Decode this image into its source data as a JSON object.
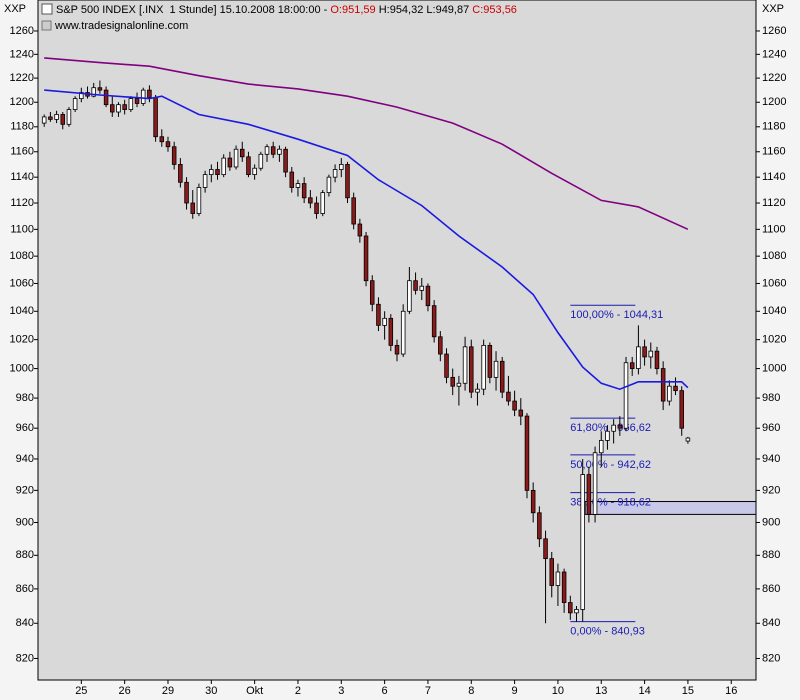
{
  "chart_data": {
    "type": "candlestick",
    "axis_label": "XXP",
    "title_parts": [
      "S&P 500 INDEX [.INX  1 Stunde] 15.10.2008 18:00:00 - ",
      "O:951,59",
      " H:954,32 L:949,87 ",
      "C:953,56"
    ],
    "source": "www.tradesignalonline.com",
    "log_scale": true,
    "ylim": [
      808,
      1287
    ],
    "yticks": [
      820,
      840,
      860,
      880,
      900,
      920,
      940,
      960,
      980,
      1000,
      1020,
      1040,
      1060,
      1080,
      1100,
      1120,
      1140,
      1160,
      1180,
      1200,
      1220,
      1240,
      1260
    ],
    "xlim": [
      0,
      116
    ],
    "xticks": [
      {
        "value": 7,
        "label": "25"
      },
      {
        "value": 14,
        "label": "26"
      },
      {
        "value": 21,
        "label": "29"
      },
      {
        "value": 28,
        "label": "30"
      },
      {
        "value": 35,
        "label": "Okt"
      },
      {
        "value": 42,
        "label": "2"
      },
      {
        "value": 49,
        "label": "3"
      },
      {
        "value": 56,
        "label": "6"
      },
      {
        "value": 63,
        "label": "7"
      },
      {
        "value": 70,
        "label": "8"
      },
      {
        "value": 77,
        "label": "9"
      },
      {
        "value": 84,
        "label": "10"
      },
      {
        "value": 91,
        "label": "13"
      },
      {
        "value": 98,
        "label": "14"
      },
      {
        "value": 105,
        "label": "15"
      },
      {
        "value": 112,
        "label": "16"
      }
    ],
    "up_color": "#ffffff",
    "down_color": "#8b1a1a",
    "x": [
      1,
      2,
      3,
      4,
      5,
      6,
      7,
      8,
      9,
      10,
      11,
      12,
      13,
      14,
      15,
      16,
      17,
      18,
      19,
      20,
      21,
      22,
      23,
      24,
      25,
      26,
      27,
      28,
      29,
      30,
      31,
      32,
      33,
      34,
      35,
      36,
      37,
      38,
      39,
      40,
      41,
      42,
      43,
      44,
      45,
      46,
      47,
      48,
      49,
      50,
      51,
      52,
      53,
      54,
      55,
      56,
      57,
      58,
      59,
      60,
      61,
      62,
      63,
      64,
      65,
      66,
      67,
      68,
      69,
      70,
      71,
      72,
      73,
      74,
      75,
      76,
      77,
      78,
      79,
      80,
      81,
      82,
      83,
      84,
      85,
      86,
      87,
      88,
      89,
      90,
      91,
      92,
      93,
      94,
      95,
      96,
      97,
      98,
      99,
      100,
      101,
      102,
      103,
      104,
      105
    ],
    "open": [
      1183,
      1188,
      1186,
      1190,
      1182,
      1194,
      1203,
      1208,
      1205,
      1212,
      1210,
      1198,
      1192,
      1198,
      1194,
      1203,
      1199,
      1210,
      1204,
      1172,
      1168,
      1164,
      1150,
      1136,
      1120,
      1112,
      1132,
      1142,
      1146,
      1142,
      1155,
      1148,
      1162,
      1156,
      1142,
      1147,
      1158,
      1164,
      1158,
      1162,
      1144,
      1132,
      1135,
      1124,
      1120,
      1112,
      1128,
      1140,
      1146,
      1150,
      1124,
      1104,
      1095,
      1062,
      1045,
      1030,
      1035,
      1016,
      1010,
      1040,
      1062,
      1055,
      1058,
      1044,
      1022,
      1010,
      994,
      988,
      990,
      1015,
      984,
      986,
      1016,
      994,
      1005,
      984,
      978,
      972,
      968,
      920,
      906,
      890,
      878,
      862,
      870,
      852,
      846,
      848,
      930,
      905,
      944,
      952,
      958,
      962,
      960,
      1004,
      1000,
      1015,
      1008,
      1012,
      1000,
      978,
      988,
      985,
      951.59
    ],
    "high": [
      1190,
      1192,
      1193,
      1192,
      1196,
      1205,
      1212,
      1213,
      1216,
      1218,
      1213,
      1205,
      1200,
      1202,
      1205,
      1208,
      1212,
      1214,
      1206,
      1178,
      1172,
      1168,
      1155,
      1140,
      1130,
      1135,
      1145,
      1150,
      1152,
      1158,
      1160,
      1165,
      1168,
      1160,
      1150,
      1160,
      1166,
      1168,
      1165,
      1164,
      1148,
      1138,
      1140,
      1130,
      1125,
      1130,
      1142,
      1150,
      1155,
      1152,
      1128,
      1108,
      1098,
      1066,
      1050,
      1040,
      1038,
      1020,
      1045,
      1072,
      1068,
      1064,
      1060,
      1048,
      1026,
      1014,
      1000,
      995,
      1022,
      1020,
      990,
      1020,
      1018,
      1012,
      1008,
      995,
      985,
      980,
      970,
      925,
      910,
      895,
      882,
      875,
      872,
      856,
      850,
      940,
      935,
      948,
      958,
      962,
      966,
      968,
      1008,
      1008,
      1030,
      1020,
      1018,
      1015,
      1005,
      992,
      994,
      988,
      954.32
    ],
    "low": [
      1180,
      1184,
      1183,
      1178,
      1180,
      1192,
      1200,
      1203,
      1204,
      1207,
      1196,
      1188,
      1188,
      1190,
      1192,
      1196,
      1197,
      1200,
      1168,
      1164,
      1160,
      1146,
      1132,
      1115,
      1108,
      1110,
      1128,
      1136,
      1138,
      1140,
      1145,
      1146,
      1152,
      1140,
      1138,
      1145,
      1152,
      1155,
      1152,
      1140,
      1128,
      1125,
      1120,
      1116,
      1108,
      1110,
      1125,
      1136,
      1140,
      1120,
      1100,
      1090,
      1058,
      1040,
      1026,
      1020,
      1012,
      1005,
      1008,
      1038,
      1052,
      1048,
      1040,
      1018,
      1005,
      990,
      982,
      975,
      985,
      980,
      975,
      982,
      990,
      985,
      980,
      975,
      968,
      962,
      915,
      900,
      885,
      840,
      855,
      850,
      846,
      842,
      841,
      841,
      900,
      900,
      935,
      946,
      950,
      955,
      958,
      995,
      996,
      1002,
      1000,
      996,
      972,
      975,
      982,
      955,
      949.87
    ],
    "close": [
      1188,
      1186,
      1190,
      1182,
      1194,
      1203,
      1208,
      1205,
      1212,
      1210,
      1198,
      1192,
      1198,
      1194,
      1203,
      1199,
      1210,
      1204,
      1172,
      1168,
      1164,
      1150,
      1136,
      1120,
      1112,
      1132,
      1142,
      1146,
      1142,
      1155,
      1148,
      1162,
      1156,
      1142,
      1147,
      1158,
      1164,
      1158,
      1162,
      1144,
      1132,
      1135,
      1124,
      1120,
      1112,
      1128,
      1140,
      1146,
      1150,
      1124,
      1104,
      1095,
      1062,
      1045,
      1030,
      1035,
      1016,
      1010,
      1040,
      1062,
      1055,
      1058,
      1044,
      1022,
      1010,
      994,
      988,
      990,
      1015,
      984,
      986,
      1016,
      994,
      1005,
      984,
      978,
      972,
      968,
      920,
      906,
      890,
      878,
      862,
      870,
      852,
      846,
      848,
      930,
      905,
      944,
      952,
      958,
      962,
      960,
      1004,
      1000,
      1015,
      1008,
      1012,
      1000,
      978,
      988,
      985,
      960,
      953.56
    ],
    "lines": [
      {
        "color": "#1a1ae0",
        "x": [
          1,
          10,
          18,
          20,
          26,
          34,
          42,
          50,
          55,
          62,
          68,
          75,
          80,
          84,
          88,
          91,
          94,
          97,
          101,
          104,
          105
        ],
        "values": [
          1210,
          1206,
          1203,
          1205,
          1190,
          1182,
          1170,
          1157,
          1138,
          1118,
          1095,
          1072,
          1052,
          1025,
          1001,
          990,
          986,
          991,
          991,
          991,
          987
        ]
      },
      {
        "color": "#800080",
        "x": [
          1,
          10,
          18,
          26,
          34,
          42,
          50,
          58,
          67,
          75,
          83,
          91,
          97,
          105
        ],
        "values": [
          1237,
          1233,
          1230,
          1222,
          1215,
          1211,
          1205,
          1196,
          1183,
          1166,
          1143,
          1122,
          1117,
          1100
        ]
      }
    ],
    "fib": {
      "x": [
        86,
        96.5
      ],
      "color": "#1a1ab4",
      "levels": [
        {
          "value": 1044.31,
          "label": "100,00% - 1044,31"
        },
        {
          "value": 966.62,
          "label": "61,80% - 966,62"
        },
        {
          "value": 942.62,
          "label": "50,00% - 942,62"
        },
        {
          "value": 918.62,
          "label": "38,20% - 918,62"
        },
        {
          "value": 840.93,
          "label": "0,00% - 840,93"
        }
      ]
    },
    "zone": {
      "x": 88.4,
      "low": 905,
      "high": 913,
      "color": "#c8c8e8"
    }
  }
}
